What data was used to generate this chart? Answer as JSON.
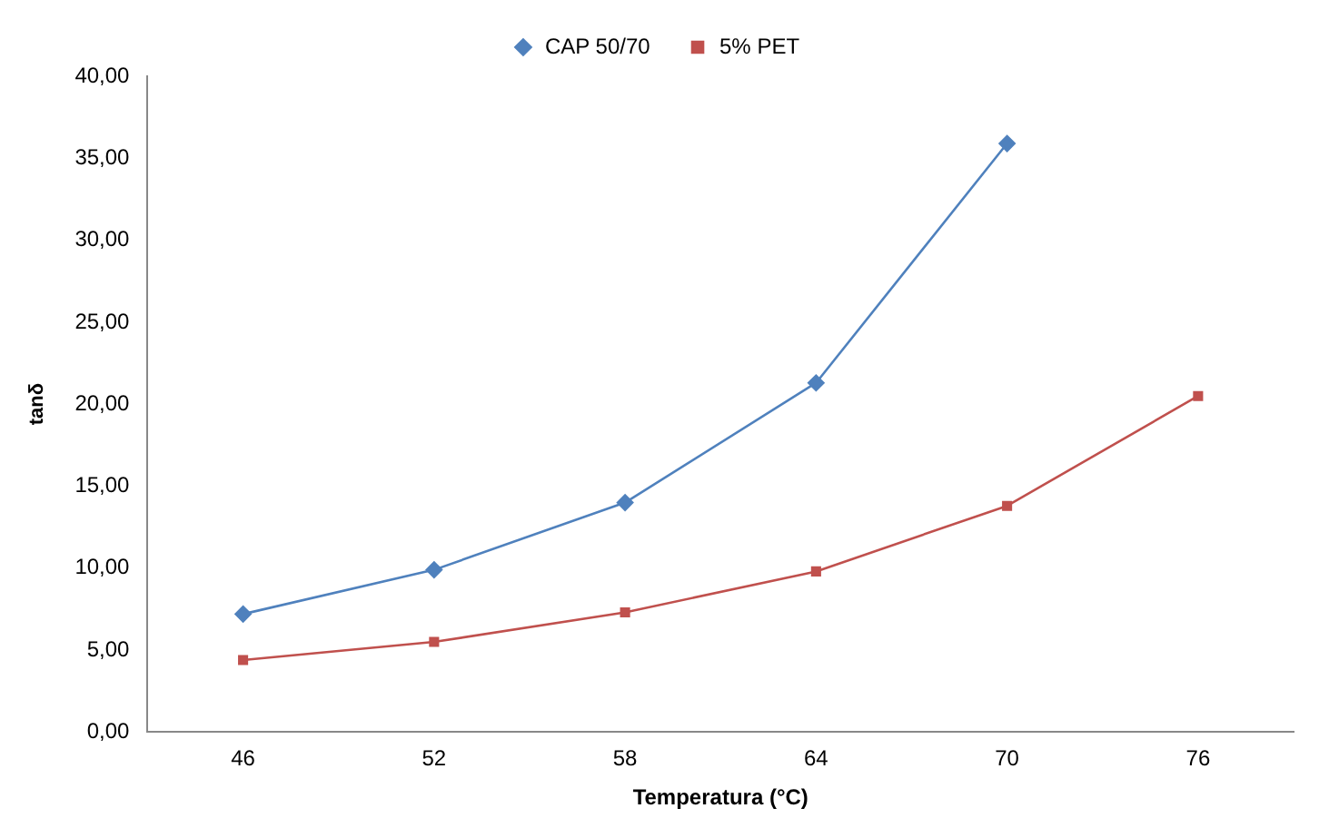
{
  "chart_data": {
    "type": "line",
    "xlabel": "Temperatura (°C)",
    "ylabel": "tanδ",
    "categories": [
      "46",
      "52",
      "58",
      "64",
      "70",
      "76"
    ],
    "series": [
      {
        "name": "CAP 50/70",
        "color": "#4f81bd",
        "marker": "diamond",
        "values": [
          7.2,
          9.9,
          14.0,
          21.3,
          35.9,
          null
        ]
      },
      {
        "name": "5% PET",
        "color": "#c0504d",
        "marker": "square",
        "values": [
          4.4,
          5.5,
          7.3,
          9.8,
          13.8,
          20.5
        ]
      }
    ],
    "ylim": [
      0,
      40
    ],
    "yticks": [
      {
        "value": 0,
        "label": "0,00"
      },
      {
        "value": 5,
        "label": "5,00"
      },
      {
        "value": 10,
        "label": "10,00"
      },
      {
        "value": 15,
        "label": "15,00"
      },
      {
        "value": 20,
        "label": "20,00"
      },
      {
        "value": 25,
        "label": "25,00"
      },
      {
        "value": 30,
        "label": "30,00"
      },
      {
        "value": 35,
        "label": "35,00"
      },
      {
        "value": 40,
        "label": "40,00"
      }
    ],
    "grid": false,
    "legend": "top",
    "line_style": "solid"
  }
}
